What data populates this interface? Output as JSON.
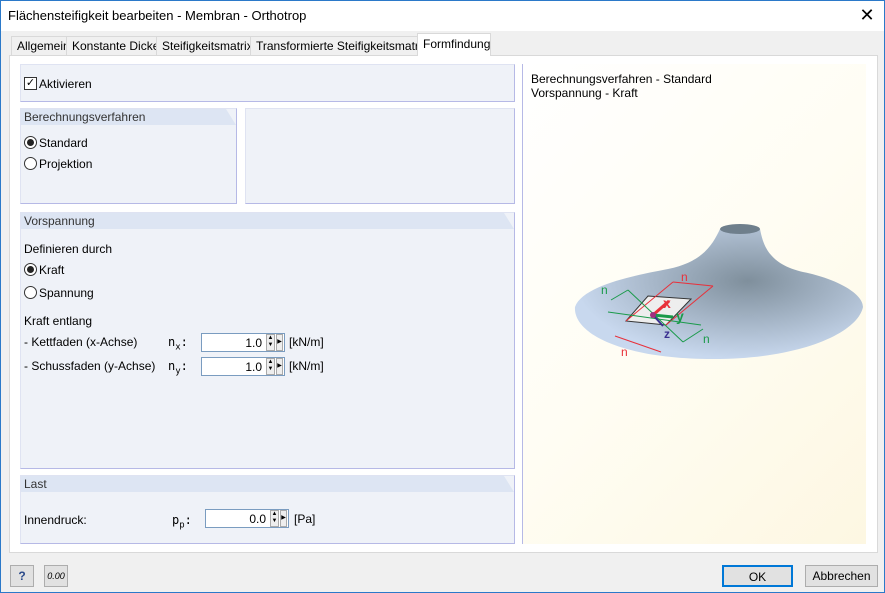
{
  "window": {
    "title": "Flächensteifigkeit bearbeiten - Membran - Orthotrop",
    "close_label": "✕"
  },
  "tabs": [
    {
      "label": "Allgemein"
    },
    {
      "label": "Konstante Dicke"
    },
    {
      "label": "Steifigkeitsmatrix"
    },
    {
      "label": "Transformierte Steifigkeitsmatrix"
    },
    {
      "label": "Formfindung",
      "selected": true
    }
  ],
  "activate": {
    "label": "Aktivieren",
    "checked": true
  },
  "method": {
    "header": "Berechnungsverfahren",
    "options": [
      {
        "label": "Standard",
        "selected": true
      },
      {
        "label": "Projektion",
        "selected": false
      }
    ]
  },
  "prestress": {
    "header": "Vorspannung",
    "define_by": "Definieren durch",
    "options": [
      {
        "label": "Kraft",
        "selected": true
      },
      {
        "label": "Spannung",
        "selected": false
      }
    ],
    "force_along": "Kraft entlang",
    "rows": [
      {
        "label": "- Kettfaden (x-Achse)",
        "symbol": "n",
        "sub": "x",
        "value": "1.0",
        "unit": "[kN/m]"
      },
      {
        "label": "- Schussfaden (y-Achse)",
        "symbol": "n",
        "sub": "y",
        "value": "1.0",
        "unit": "[kN/m]"
      }
    ]
  },
  "load": {
    "header": "Last",
    "label": "Innendruck:",
    "symbol": "p",
    "sub": "p",
    "value": "0.0",
    "unit": "[Pa]"
  },
  "preview": {
    "line1": "Berechnungsverfahren - Standard",
    "line2": "Vorspannung - Kraft",
    "labels": {
      "nx": "n",
      "x": "x",
      "ny": "n",
      "y": "y",
      "z": "z"
    },
    "colors": {
      "x": "#e8303a",
      "y": "#1a9a4a",
      "z": "#3a3090",
      "surface": "#c8d8ee"
    }
  },
  "footer": {
    "help_icon": "help-icon",
    "units_icon": "0.00",
    "ok": "OK",
    "cancel": "Abbrechen"
  }
}
